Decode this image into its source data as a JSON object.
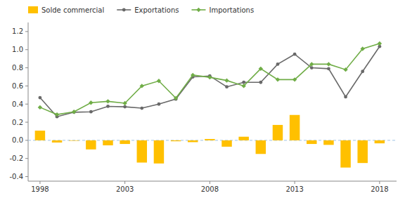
{
  "chart_data": {
    "type": "bar",
    "x": [
      1998,
      1999,
      2000,
      2001,
      2002,
      2003,
      2004,
      2005,
      2006,
      2007,
      2008,
      2009,
      2010,
      2011,
      2012,
      2013,
      2014,
      2015,
      2016,
      2017,
      2018
    ],
    "series": [
      {
        "name": "Solde commercial",
        "type": "bar",
        "color": "#ffc000",
        "values": [
          0.107,
          -0.024,
          -0.005,
          -0.1,
          -0.055,
          -0.04,
          -0.245,
          -0.255,
          -0.01,
          -0.02,
          0.015,
          -0.07,
          0.04,
          -0.15,
          0.17,
          0.28,
          -0.04,
          -0.05,
          -0.3,
          -0.25,
          -0.033
        ]
      },
      {
        "name": "Exportations",
        "type": "line",
        "color": "#696969",
        "marker": "circle",
        "values": [
          0.471,
          0.261,
          0.31,
          0.315,
          0.375,
          0.37,
          0.355,
          0.4,
          0.455,
          0.7,
          0.71,
          0.59,
          0.64,
          0.64,
          0.84,
          0.95,
          0.8,
          0.79,
          0.48,
          0.76,
          1.035
        ]
      },
      {
        "name": "Importations",
        "type": "line",
        "color": "#70ad47",
        "marker": "diamond",
        "values": [
          0.364,
          0.285,
          0.315,
          0.415,
          0.43,
          0.41,
          0.6,
          0.655,
          0.465,
          0.72,
          0.695,
          0.66,
          0.6,
          0.79,
          0.67,
          0.67,
          0.84,
          0.84,
          0.78,
          1.01,
          1.068
        ]
      }
    ],
    "xlim": [
      1997.3,
      2019.0
    ],
    "xticks": [
      1998,
      2003,
      2008,
      2013,
      2018
    ],
    "ylim": [
      -0.45,
      1.3
    ],
    "yticks": [
      -0.4,
      -0.2,
      {
        "value": 0.0,
        "label": "0.0"
      },
      0.2,
      0.4,
      0.6,
      0.8,
      {
        "value": 1.0,
        "label": "1.0"
      },
      1.2
    ],
    "grid": false,
    "legend": "upper left"
  }
}
